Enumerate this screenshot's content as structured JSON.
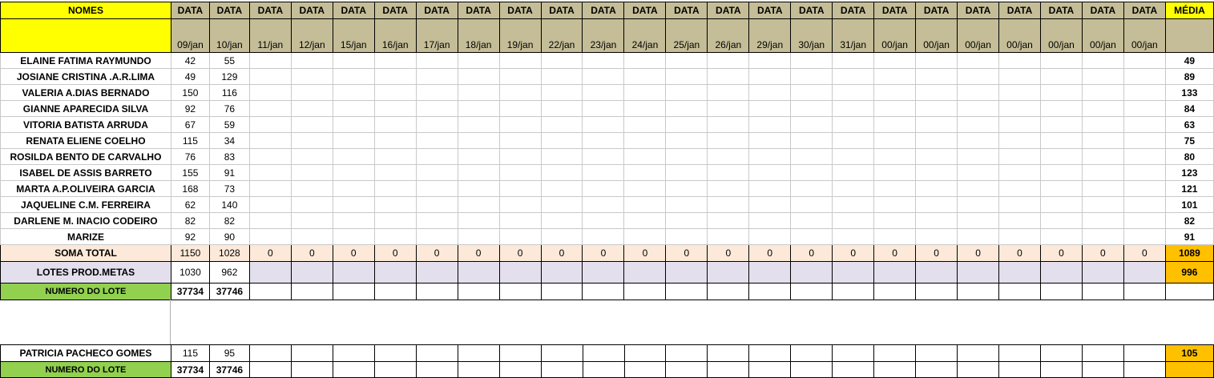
{
  "headers": {
    "nomes": "NOMES",
    "data": "DATA",
    "media": "MÉDIA",
    "dates": [
      "09/jan",
      "10/jan",
      "11/jan",
      "12/jan",
      "15/jan",
      "16/jan",
      "17/jan",
      "18/jan",
      "19/jan",
      "22/jan",
      "23/jan",
      "24/jan",
      "25/jan",
      "26/jan",
      "29/jan",
      "30/jan",
      "31/jan",
      "00/jan",
      "00/jan",
      "00/jan",
      "00/jan",
      "00/jan",
      "00/jan",
      "00/jan"
    ]
  },
  "rows": [
    {
      "name": "ELAINE FATIMA RAYMUNDO",
      "v1": "42",
      "v2": "55",
      "media": "49"
    },
    {
      "name": "JOSIANE CRISTINA .A.R.LIMA",
      "v1": "49",
      "v2": "129",
      "media": "89"
    },
    {
      "name": "VALERIA A.DIAS BERNADO",
      "v1": "150",
      "v2": "116",
      "media": "133"
    },
    {
      "name": "GIANNE APARECIDA SILVA",
      "v1": "92",
      "v2": "76",
      "media": "84"
    },
    {
      "name": "VITORIA BATISTA ARRUDA",
      "v1": "67",
      "v2": "59",
      "media": "63"
    },
    {
      "name": "RENATA ELIENE COELHO",
      "v1": "115",
      "v2": "34",
      "media": "75"
    },
    {
      "name": "ROSILDA BENTO DE CARVALHO",
      "v1": "76",
      "v2": "83",
      "media": "80"
    },
    {
      "name": "ISABEL DE ASSIS BARRETO",
      "v1": "155",
      "v2": "91",
      "media": "123"
    },
    {
      "name": "MARTA A.P.OLIVEIRA GARCIA",
      "v1": "168",
      "v2": "73",
      "media": "121"
    },
    {
      "name": "JAQUELINE C.M. FERREIRA",
      "v1": "62",
      "v2": "140",
      "media": "101"
    },
    {
      "name": "DARLENE M. INACIO CODEIRO",
      "v1": "82",
      "v2": "82",
      "media": "82"
    },
    {
      "name": "MARIZE",
      "v1": "92",
      "v2": "90",
      "media": "91"
    }
  ],
  "soma": {
    "label": "SOMA TOTAL",
    "v1": "1150",
    "v2": "1028",
    "zero": "0",
    "media": "1089"
  },
  "lotes": {
    "label": "LOTES PROD.METAS",
    "v1": "1030",
    "v2": "962",
    "media": "996"
  },
  "numero_lote": {
    "label": "NUMERO DO LOTE",
    "v1": "37734",
    "v2": "37746"
  },
  "second": {
    "name": "PATRICIA PACHECO GOMES",
    "v1": "115",
    "v2": "95",
    "media": "105",
    "lote_label": "NUMERO DO LOTE",
    "lote_v1": "37734",
    "lote_v2": "37746"
  },
  "colors": {
    "yellow": "#ffff00",
    "tan": "#c4bd97",
    "peach": "#fde9d9",
    "lavender": "#e4dfec",
    "green": "#92d050",
    "orange": "#ffc000"
  }
}
